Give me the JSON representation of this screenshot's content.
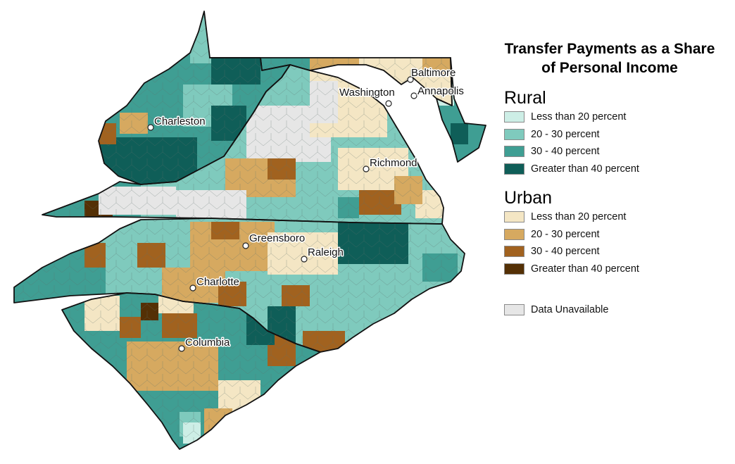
{
  "legend": {
    "title": "Transfer Payments as a Share of Personal Income",
    "sections": [
      {
        "title": "Rural",
        "items": [
          {
            "label": "Less than 20 percent",
            "color": "#cdeee6"
          },
          {
            "label": "20 - 30 percent",
            "color": "#7fcabd"
          },
          {
            "label": "30 - 40 percent",
            "color": "#3f9e93"
          },
          {
            "label": "Greater than 40 percent",
            "color": "#0f5e58"
          }
        ]
      },
      {
        "title": "Urban",
        "items": [
          {
            "label": "Less than 20 percent",
            "color": "#f4e6c4"
          },
          {
            "label": "20 - 30 percent",
            "color": "#d6a960"
          },
          {
            "label": "30 - 40 percent",
            "color": "#a1621f"
          },
          {
            "label": "Greater than 40 percent",
            "color": "#543005"
          }
        ]
      }
    ],
    "unavailable": {
      "label": "Data Unavailable",
      "color": "#e6e6e6"
    }
  },
  "cities": [
    "Baltimore",
    "Washington",
    "Annapolis",
    "Charleston",
    "Richmond",
    "Greensboro",
    "Raleigh",
    "Charlotte",
    "Columbia"
  ]
}
